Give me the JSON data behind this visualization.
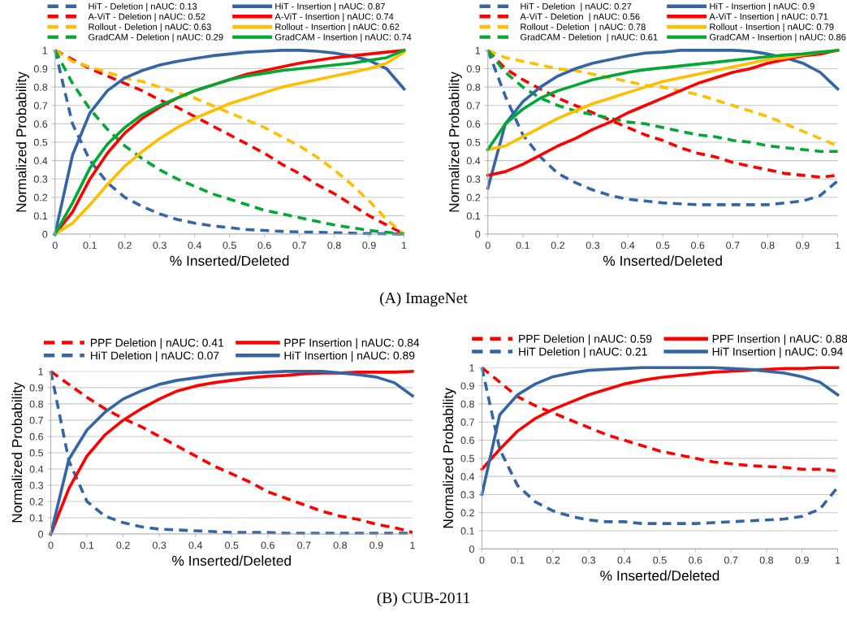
{
  "chart_data": [
    {
      "type": "line",
      "xlabel": "% Inserted/Deleted",
      "ylabel": "Normalized Probability",
      "annotations": [
        "(A) ImageNet"
      ],
      "xlim": [
        0,
        1
      ],
      "ylim": [
        0,
        1
      ],
      "xticks": [
        0,
        0.1,
        0.2,
        0.3,
        0.4,
        0.5,
        0.6,
        0.7,
        0.8,
        0.9,
        1
      ],
      "yticks": [
        0,
        0.1,
        0.2,
        0.3,
        0.4,
        0.5,
        0.6,
        0.7,
        0.8,
        0.9,
        1
      ],
      "grid": "y",
      "legend": "top",
      "marker": "none",
      "x": [
        0,
        0.05,
        0.1,
        0.15,
        0.2,
        0.25,
        0.3,
        0.35,
        0.4,
        0.45,
        0.5,
        0.55,
        0.6,
        0.65,
        0.7,
        0.75,
        0.8,
        0.85,
        0.9,
        0.95,
        1
      ],
      "series": [
        {
          "name": "HiT - Deletion | nAUC: 0.13",
          "color": "#3465a4",
          "line_style": "dashed",
          "values": [
            1,
            0.6,
            0.4,
            0.28,
            0.2,
            0.15,
            0.11,
            0.08,
            0.06,
            0.045,
            0.035,
            0.025,
            0.02,
            0.015,
            0.012,
            0.01,
            0.008,
            0.005,
            0.003,
            0.002,
            0
          ]
        },
        {
          "name": "A-ViT - Deletion | nAUC: 0.52",
          "color": "#ff0000",
          "line_style": "dashed",
          "values": [
            1,
            0.95,
            0.9,
            0.86,
            0.82,
            0.78,
            0.73,
            0.69,
            0.64,
            0.59,
            0.54,
            0.49,
            0.44,
            0.38,
            0.33,
            0.27,
            0.22,
            0.16,
            0.1,
            0.05,
            0
          ]
        },
        {
          "name": "Rollout - Deletion | nAUC: 0.63",
          "color": "#ffbf00",
          "line_style": "dashed",
          "values": [
            1,
            0.94,
            0.91,
            0.88,
            0.85,
            0.83,
            0.8,
            0.77,
            0.74,
            0.7,
            0.66,
            0.62,
            0.58,
            0.53,
            0.48,
            0.42,
            0.35,
            0.27,
            0.18,
            0.08,
            0
          ]
        },
        {
          "name": "GradCAM - Deletion | nAUC: 0.29",
          "color": "#00a933",
          "line_style": "dashed",
          "values": [
            1,
            0.82,
            0.68,
            0.57,
            0.48,
            0.41,
            0.35,
            0.3,
            0.26,
            0.22,
            0.19,
            0.16,
            0.13,
            0.11,
            0.09,
            0.07,
            0.05,
            0.035,
            0.02,
            0.01,
            0
          ]
        },
        {
          "name": "HiT - Insertion | nAUC: 0.87",
          "color": "#3465a4",
          "line_style": "solid",
          "values": [
            0,
            0.43,
            0.66,
            0.78,
            0.85,
            0.89,
            0.92,
            0.94,
            0.955,
            0.97,
            0.98,
            0.99,
            0.995,
            1,
            1,
            0.995,
            0.985,
            0.97,
            0.945,
            0.9,
            0.79
          ]
        },
        {
          "name": "A-ViT - Insertion | nAUC: 0.74",
          "color": "#ff0000",
          "line_style": "solid",
          "values": [
            0,
            0.12,
            0.3,
            0.44,
            0.55,
            0.63,
            0.69,
            0.74,
            0.78,
            0.81,
            0.84,
            0.87,
            0.89,
            0.91,
            0.93,
            0.945,
            0.96,
            0.97,
            0.98,
            0.99,
            1
          ]
        },
        {
          "name": "Rollout - Insertion | nAUC: 0.62",
          "color": "#ffbf00",
          "line_style": "solid",
          "values": [
            0,
            0.06,
            0.16,
            0.27,
            0.37,
            0.45,
            0.52,
            0.58,
            0.63,
            0.67,
            0.71,
            0.74,
            0.77,
            0.8,
            0.82,
            0.84,
            0.86,
            0.88,
            0.9,
            0.93,
            0.99
          ]
        },
        {
          "name": "GradCAM - Insertion | nAUC: 0.74",
          "color": "#00a933",
          "line_style": "solid",
          "values": [
            0,
            0.17,
            0.36,
            0.49,
            0.58,
            0.65,
            0.7,
            0.74,
            0.78,
            0.81,
            0.84,
            0.86,
            0.875,
            0.89,
            0.9,
            0.91,
            0.92,
            0.93,
            0.945,
            0.96,
            1
          ]
        }
      ]
    },
    {
      "type": "line",
      "xlabel": "% Inserted/Deleted",
      "ylabel": "Normalized Probability",
      "xlim": [
        0,
        1
      ],
      "ylim": [
        0,
        1
      ],
      "xticks": [
        0,
        0.1,
        0.2,
        0.3,
        0.4,
        0.5,
        0.6,
        0.7,
        0.8,
        0.9,
        1
      ],
      "yticks": [
        0,
        0.1,
        0.2,
        0.3,
        0.4,
        0.5,
        0.6,
        0.7,
        0.8,
        0.9,
        1
      ],
      "grid": "y",
      "legend": "top",
      "marker": "none",
      "x": [
        0,
        0.05,
        0.1,
        0.15,
        0.2,
        0.25,
        0.3,
        0.35,
        0.4,
        0.45,
        0.5,
        0.55,
        0.6,
        0.65,
        0.7,
        0.75,
        0.8,
        0.85,
        0.9,
        0.95,
        1
      ],
      "series": [
        {
          "name": "HiT - Deletion  | nAUC: 0.27",
          "color": "#3465a4",
          "line_style": "dashed",
          "values": [
            1,
            0.75,
            0.54,
            0.42,
            0.33,
            0.28,
            0.24,
            0.21,
            0.19,
            0.18,
            0.17,
            0.165,
            0.16,
            0.16,
            0.16,
            0.16,
            0.16,
            0.17,
            0.18,
            0.21,
            0.29
          ]
        },
        {
          "name": "A-ViT - Deletion  | nAUC: 0.56",
          "color": "#ff0000",
          "line_style": "dashed",
          "values": [
            1,
            0.9,
            0.84,
            0.79,
            0.74,
            0.7,
            0.66,
            0.62,
            0.58,
            0.54,
            0.51,
            0.47,
            0.44,
            0.42,
            0.39,
            0.37,
            0.35,
            0.33,
            0.32,
            0.31,
            0.32
          ]
        },
        {
          "name": "Rollout - Deletion  | nAUC: 0.78",
          "color": "#ffbf00",
          "line_style": "dashed",
          "values": [
            1,
            0.96,
            0.94,
            0.92,
            0.9,
            0.89,
            0.87,
            0.85,
            0.83,
            0.81,
            0.8,
            0.78,
            0.76,
            0.73,
            0.7,
            0.67,
            0.64,
            0.6,
            0.56,
            0.52,
            0.48
          ]
        },
        {
          "name": "GradCAM - Deletion  | nAUC: 0.61",
          "color": "#00a933",
          "line_style": "dashed",
          "values": [
            1,
            0.88,
            0.8,
            0.74,
            0.7,
            0.67,
            0.65,
            0.63,
            0.61,
            0.6,
            0.58,
            0.56,
            0.54,
            0.53,
            0.51,
            0.5,
            0.48,
            0.47,
            0.46,
            0.45,
            0.45
          ]
        },
        {
          "name": "HiT - Insertion | nAUC: 0.9",
          "color": "#3465a4",
          "line_style": "solid",
          "values": [
            0.25,
            0.6,
            0.72,
            0.8,
            0.86,
            0.9,
            0.93,
            0.95,
            0.97,
            0.985,
            0.99,
            1,
            1,
            1,
            1,
            0.995,
            0.98,
            0.96,
            0.93,
            0.88,
            0.79
          ]
        },
        {
          "name": "A-ViT - Insertion | nAUC: 0.71",
          "color": "#ff0000",
          "line_style": "solid",
          "values": [
            0.32,
            0.34,
            0.38,
            0.43,
            0.48,
            0.52,
            0.57,
            0.61,
            0.66,
            0.7,
            0.74,
            0.78,
            0.82,
            0.85,
            0.88,
            0.9,
            0.93,
            0.95,
            0.97,
            0.98,
            1
          ]
        },
        {
          "name": "Rollout - Insertion | nAUC: 0.79",
          "color": "#ffbf00",
          "line_style": "solid",
          "values": [
            0.46,
            0.48,
            0.53,
            0.58,
            0.63,
            0.67,
            0.71,
            0.74,
            0.77,
            0.8,
            0.83,
            0.85,
            0.87,
            0.89,
            0.91,
            0.93,
            0.95,
            0.96,
            0.975,
            0.99,
            1
          ]
        },
        {
          "name": "GradCAM - Insertion | nAUC: 0.86",
          "color": "#00a933",
          "line_style": "solid",
          "values": [
            0.46,
            0.6,
            0.68,
            0.74,
            0.78,
            0.81,
            0.84,
            0.86,
            0.88,
            0.895,
            0.905,
            0.915,
            0.925,
            0.935,
            0.945,
            0.955,
            0.965,
            0.975,
            0.98,
            0.99,
            1
          ]
        }
      ]
    },
    {
      "type": "line",
      "xlabel": "% Inserted/Deleted",
      "ylabel": "Normalized Probability",
      "annotations": [
        "(B) CUB-2011"
      ],
      "xlim": [
        0,
        1
      ],
      "ylim": [
        0,
        1
      ],
      "xticks": [
        0,
        0.1,
        0.2,
        0.3,
        0.4,
        0.5,
        0.6,
        0.7,
        0.8,
        0.9,
        1
      ],
      "yticks": [
        0,
        0.1,
        0.2,
        0.3,
        0.4,
        0.5,
        0.6,
        0.7,
        0.8,
        0.9,
        1
      ],
      "grid": "y",
      "legend": "top",
      "marker": "none",
      "x": [
        0,
        0.05,
        0.1,
        0.15,
        0.2,
        0.25,
        0.3,
        0.35,
        0.4,
        0.45,
        0.5,
        0.55,
        0.6,
        0.65,
        0.7,
        0.75,
        0.8,
        0.85,
        0.9,
        0.95,
        1
      ],
      "series": [
        {
          "name": "PPF Deletion | nAUC: 0.41",
          "color": "#ff0000",
          "line_style": "dashed",
          "values": [
            1,
            0.92,
            0.84,
            0.77,
            0.71,
            0.66,
            0.6,
            0.54,
            0.48,
            0.42,
            0.37,
            0.32,
            0.26,
            0.22,
            0.18,
            0.14,
            0.11,
            0.09,
            0.06,
            0.04,
            0.01
          ]
        },
        {
          "name": "HiT Deletion | nAUC: 0.07",
          "color": "#3465a4",
          "line_style": "dashed",
          "values": [
            1,
            0.45,
            0.2,
            0.11,
            0.07,
            0.045,
            0.03,
            0.025,
            0.02,
            0.015,
            0.01,
            0.01,
            0.01,
            0.005,
            0.005,
            0.005,
            0.005,
            0.005,
            0.005,
            0.005,
            0.005
          ]
        },
        {
          "name": "PPF Insertion | nAUC: 0.84",
          "color": "#ff0000",
          "line_style": "solid",
          "values": [
            0,
            0.28,
            0.48,
            0.61,
            0.7,
            0.77,
            0.83,
            0.88,
            0.91,
            0.93,
            0.945,
            0.96,
            0.97,
            0.975,
            0.985,
            0.99,
            0.99,
            0.995,
            0.995,
            0.995,
            1
          ]
        },
        {
          "name": "HiT Insertion | nAUC: 0.89",
          "color": "#3465a4",
          "line_style": "solid",
          "values": [
            0,
            0.46,
            0.64,
            0.75,
            0.83,
            0.88,
            0.92,
            0.945,
            0.96,
            0.975,
            0.985,
            0.99,
            0.995,
            1,
            1,
            1,
            0.99,
            0.98,
            0.965,
            0.93,
            0.85
          ]
        }
      ]
    },
    {
      "type": "line",
      "xlabel": "% Inserted/Deleted",
      "ylabel": "Normalized Probability",
      "xlim": [
        0,
        1
      ],
      "ylim": [
        0,
        1
      ],
      "xticks": [
        0,
        0.1,
        0.2,
        0.3,
        0.4,
        0.5,
        0.6,
        0.7,
        0.8,
        0.9,
        1
      ],
      "yticks": [
        0,
        0.1,
        0.2,
        0.3,
        0.4,
        0.5,
        0.6,
        0.7,
        0.8,
        0.9,
        1
      ],
      "grid": "y",
      "legend": "top",
      "marker": "none",
      "x": [
        0,
        0.05,
        0.1,
        0.15,
        0.2,
        0.25,
        0.3,
        0.35,
        0.4,
        0.45,
        0.5,
        0.55,
        0.6,
        0.65,
        0.7,
        0.75,
        0.8,
        0.85,
        0.9,
        0.95,
        1
      ],
      "series": [
        {
          "name": "PPF Deletion | nAUC: 0.59",
          "color": "#ff0000",
          "line_style": "dashed",
          "values": [
            1,
            0.92,
            0.84,
            0.79,
            0.75,
            0.71,
            0.67,
            0.63,
            0.6,
            0.57,
            0.54,
            0.52,
            0.5,
            0.48,
            0.47,
            0.46,
            0.455,
            0.45,
            0.44,
            0.44,
            0.43
          ]
        },
        {
          "name": "HiT Deletion | nAUC: 0.21",
          "color": "#3465a4",
          "line_style": "dashed",
          "values": [
            1,
            0.55,
            0.35,
            0.26,
            0.21,
            0.18,
            0.16,
            0.15,
            0.15,
            0.14,
            0.14,
            0.14,
            0.14,
            0.145,
            0.15,
            0.155,
            0.16,
            0.165,
            0.18,
            0.22,
            0.34
          ]
        },
        {
          "name": "PPF Insertion | nAUC: 0.88",
          "color": "#ff0000",
          "line_style": "solid",
          "values": [
            0.44,
            0.55,
            0.65,
            0.72,
            0.77,
            0.81,
            0.85,
            0.88,
            0.91,
            0.93,
            0.945,
            0.955,
            0.965,
            0.975,
            0.98,
            0.985,
            0.99,
            0.995,
            0.995,
            1,
            1
          ]
        },
        {
          "name": "HiT Insertion | nAUC: 0.94",
          "color": "#3465a4",
          "line_style": "solid",
          "values": [
            0.3,
            0.74,
            0.85,
            0.91,
            0.95,
            0.97,
            0.985,
            0.99,
            0.995,
            1,
            1,
            1,
            1,
            1,
            0.995,
            0.99,
            0.98,
            0.97,
            0.95,
            0.92,
            0.85
          ]
        }
      ]
    }
  ]
}
